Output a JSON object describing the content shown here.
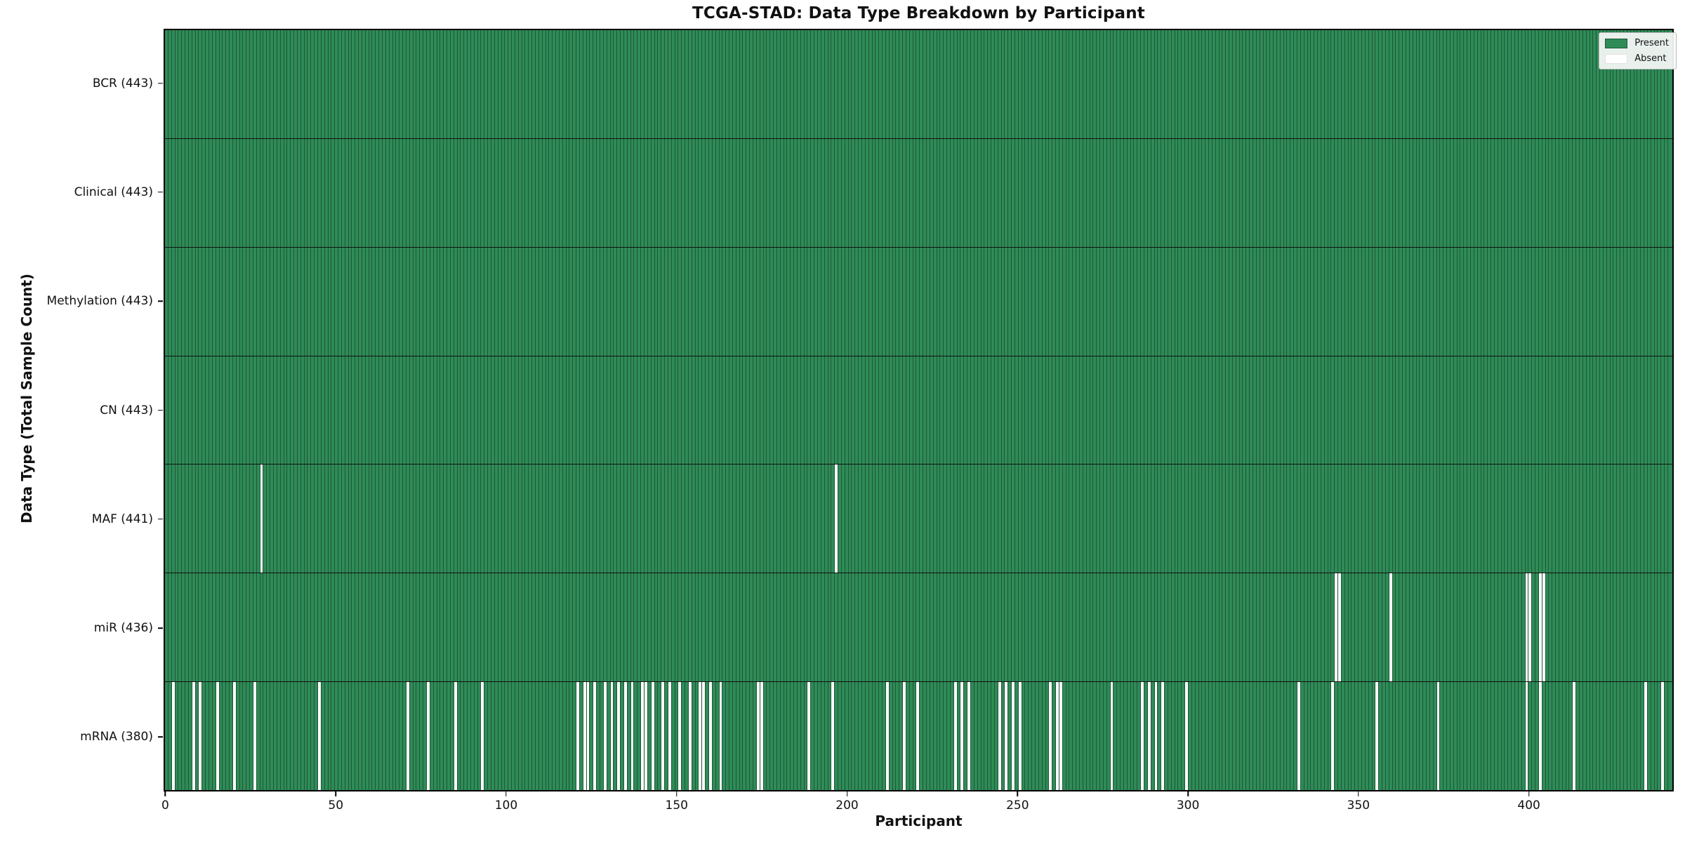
{
  "figure": {
    "title": "TCGA-STAD: Data Type Breakdown by Participant",
    "xlabel": "Participant",
    "ylabel": "Data Type (Total Sample Count)"
  },
  "chart_data": {
    "type": "heatmap",
    "title": "TCGA-STAD: Data Type Breakdown by Participant",
    "xlabel": "Participant",
    "ylabel": "Data Type (Total Sample Count)",
    "n_participants": 443,
    "x_ticks": [
      0,
      50,
      100,
      150,
      200,
      250,
      300,
      350,
      400
    ],
    "grid": false,
    "legend_position": "upper right",
    "legend": [
      {
        "label": "Present",
        "color": "#2e8b57"
      },
      {
        "label": "Absent",
        "color": "#ffffff"
      }
    ],
    "colors": {
      "present": "#2e8b57",
      "absent": "#ffffff",
      "cell_edge": "#1f5737",
      "row_divider": "#111111",
      "plot_border": "#000000"
    },
    "rows": [
      {
        "data_type": "BCR",
        "label": "BCR (443)",
        "present_count": 443,
        "absent_participants": []
      },
      {
        "data_type": "Clinical",
        "label": "Clinical (443)",
        "present_count": 443,
        "absent_participants": []
      },
      {
        "data_type": "Methylation",
        "label": "Methylation (443)",
        "present_count": 443,
        "absent_participants": []
      },
      {
        "data_type": "CN",
        "label": "CN (443)",
        "present_count": 443,
        "absent_participants": []
      },
      {
        "data_type": "MAF",
        "label": "MAF (441)",
        "present_count": 441,
        "absent_participants": [
          28,
          197
        ]
      },
      {
        "data_type": "miR",
        "label": "miR (436)",
        "present_count": 436,
        "absent_participants": [
          344,
          345,
          360,
          400,
          401,
          404,
          405
        ]
      },
      {
        "data_type": "mRNA",
        "label": "mRNA (380)",
        "present_count": 380,
        "absent_participants": [
          2,
          8,
          10,
          15,
          20,
          26,
          45,
          71,
          77,
          85,
          93,
          121,
          123,
          124,
          126,
          129,
          131,
          133,
          135,
          137,
          140,
          141,
          143,
          146,
          148,
          151,
          154,
          157,
          158,
          160,
          163,
          174,
          175,
          189,
          196,
          212,
          217,
          221,
          232,
          234,
          236,
          245,
          247,
          249,
          251,
          260,
          262,
          263,
          278,
          287,
          289,
          291,
          293,
          300,
          333,
          343,
          356,
          374,
          400,
          404,
          414,
          435,
          440
        ]
      }
    ]
  }
}
